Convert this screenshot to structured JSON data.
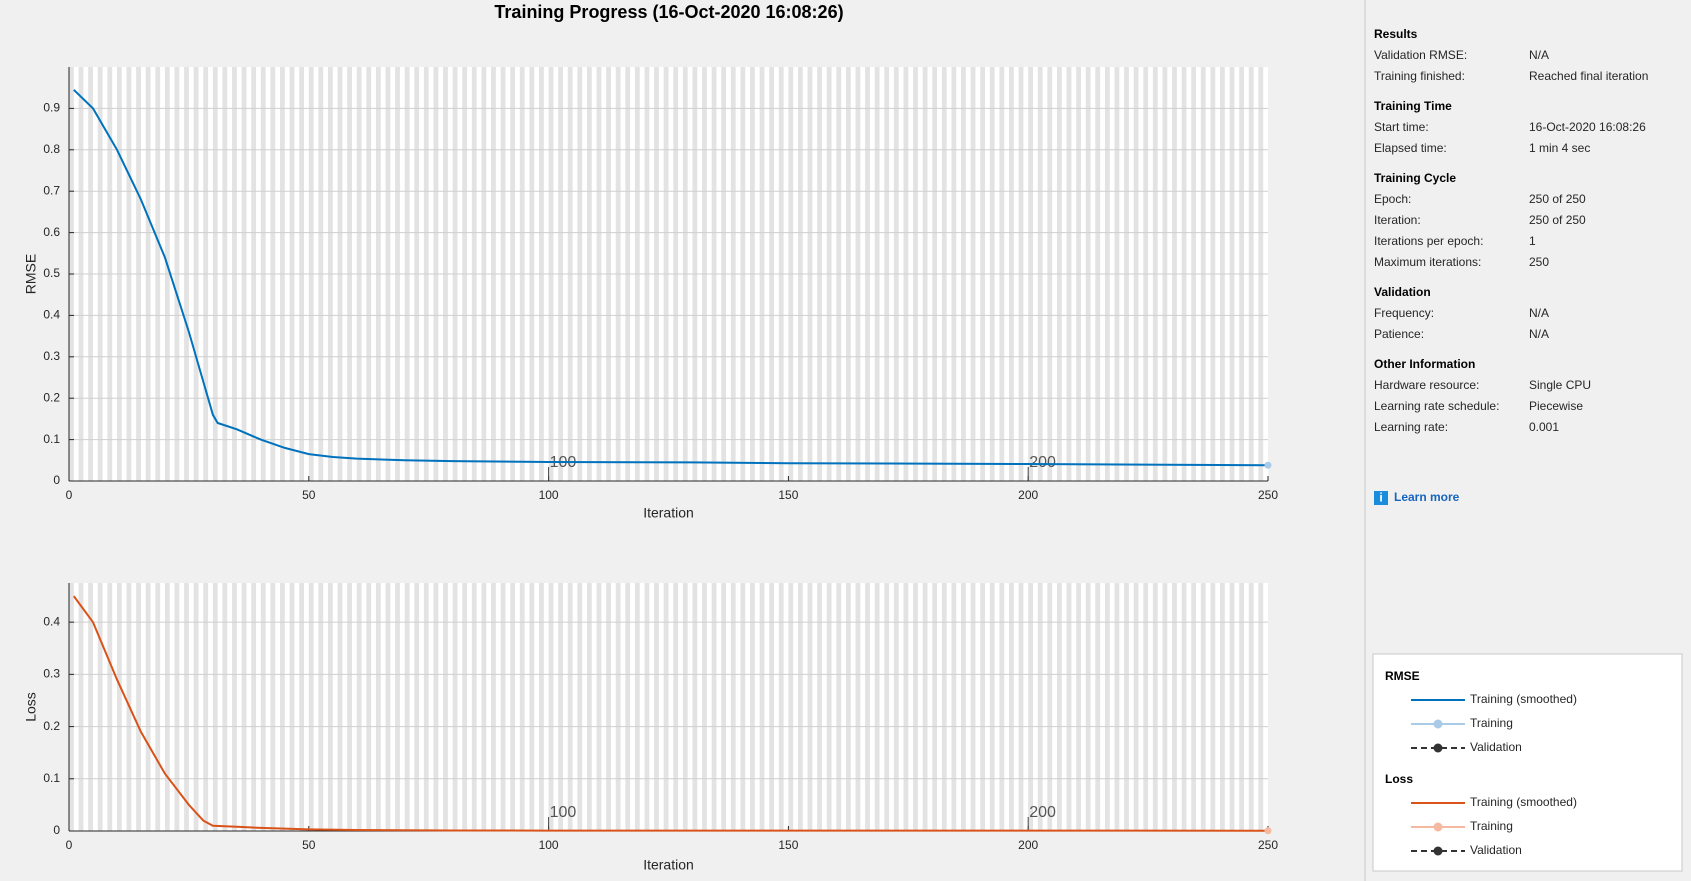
{
  "title": "Training Progress (16-Oct-2020 16:08:26)",
  "chart_data": [
    {
      "type": "line",
      "ylabel": "RMSE",
      "xlabel": "Iteration",
      "xlim": [
        0,
        250
      ],
      "xticks": [
        0,
        50,
        100,
        150,
        200,
        250
      ],
      "ylim": [
        0,
        1
      ],
      "yticks": [
        0,
        0.1,
        0.2,
        0.3,
        0.4,
        0.5,
        0.6,
        0.7,
        0.8,
        0.9
      ],
      "epoch_ticks": [
        100,
        200
      ],
      "grid": true,
      "series": [
        {
          "name": "Training (smoothed)",
          "color": "#0072bd",
          "x": [
            1,
            5,
            10,
            15,
            20,
            25,
            28,
            30,
            31,
            35,
            40,
            45,
            50,
            55,
            60,
            70,
            80,
            100,
            130,
            150,
            200,
            250
          ],
          "values": [
            0.945,
            0.9,
            0.8,
            0.68,
            0.54,
            0.36,
            0.24,
            0.16,
            0.14,
            0.125,
            0.1,
            0.08,
            0.065,
            0.058,
            0.054,
            0.05,
            0.048,
            0.046,
            0.045,
            0.043,
            0.041,
            0.038
          ]
        },
        {
          "name": "Training",
          "color": "#a9cbe8",
          "x": [
            250
          ],
          "values": [
            0.038
          ]
        }
      ]
    },
    {
      "type": "line",
      "ylabel": "Loss",
      "xlabel": "Iteration",
      "xlim": [
        0,
        250
      ],
      "xticks": [
        0,
        50,
        100,
        150,
        200,
        250
      ],
      "ylim": [
        0,
        0.475
      ],
      "yticks": [
        0,
        0.1,
        0.2,
        0.3,
        0.4
      ],
      "epoch_ticks": [
        100,
        200
      ],
      "grid": true,
      "series": [
        {
          "name": "Training (smoothed)",
          "color": "#d95319",
          "x": [
            1,
            5,
            10,
            15,
            20,
            25,
            28,
            30,
            35,
            40,
            50,
            60,
            80,
            100,
            250
          ],
          "values": [
            0.45,
            0.4,
            0.29,
            0.19,
            0.11,
            0.05,
            0.02,
            0.01,
            0.008,
            0.006,
            0.003,
            0.002,
            0.001,
            0.0008,
            0.0005
          ]
        },
        {
          "name": "Training",
          "color": "#f4b9a0",
          "x": [
            250
          ],
          "values": [
            0.0005
          ]
        }
      ]
    }
  ],
  "panel": {
    "sections": [
      {
        "title": "Results",
        "rows": [
          [
            "Validation RMSE:",
            "N/A"
          ],
          [
            "Training finished:",
            "Reached final iteration"
          ]
        ]
      },
      {
        "title": "Training Time",
        "rows": [
          [
            "Start time:",
            "16-Oct-2020 16:08:26"
          ],
          [
            "Elapsed time:",
            "1 min 4 sec"
          ]
        ]
      },
      {
        "title": "Training Cycle",
        "rows": [
          [
            "Epoch:",
            "250 of 250"
          ],
          [
            "Iteration:",
            "250 of 250"
          ],
          [
            "Iterations per epoch:",
            "1"
          ],
          [
            "Maximum iterations:",
            "250"
          ]
        ]
      },
      {
        "title": "Validation",
        "rows": [
          [
            "Frequency:",
            "N/A"
          ],
          [
            "Patience:",
            "N/A"
          ]
        ]
      },
      {
        "title": "Other Information",
        "rows": [
          [
            "Hardware resource:",
            "Single CPU"
          ],
          [
            "Learning rate schedule:",
            "Piecewise"
          ],
          [
            "Learning rate:",
            "0.001"
          ]
        ]
      }
    ],
    "learn_more": "Learn more",
    "legend": [
      {
        "title": "RMSE",
        "entries": [
          {
            "label": "Training (smoothed)",
            "color": "#0072bd",
            "style": "solid"
          },
          {
            "label": "Training",
            "color": "#a9cbe8",
            "style": "marker"
          },
          {
            "label": "Validation",
            "color": "#333333",
            "style": "dashed-marker"
          }
        ]
      },
      {
        "title": "Loss",
        "entries": [
          {
            "label": "Training (smoothed)",
            "color": "#d95319",
            "style": "solid"
          },
          {
            "label": "Training",
            "color": "#f4b9a0",
            "style": "marker"
          },
          {
            "label": "Validation",
            "color": "#333333",
            "style": "dashed-marker"
          }
        ]
      }
    ]
  }
}
